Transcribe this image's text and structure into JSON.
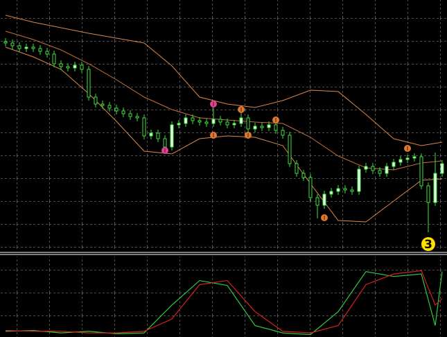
{
  "chart_data": [
    {
      "type": "candlestick",
      "xlim": [
        -0.8,
        63.7
      ],
      "ylim": [
        38,
        400
      ],
      "wick_color": "#3ee03e",
      "up_color": "#e8ffe8",
      "down_color": "#000000",
      "x": [
        0,
        1,
        2,
        3,
        4,
        5,
        6,
        7,
        8,
        9,
        10,
        11,
        12,
        13,
        14,
        15,
        16,
        17,
        18,
        19,
        20,
        21,
        22,
        23,
        24,
        25,
        26,
        27,
        28,
        29,
        30,
        31,
        32,
        33,
        34,
        35,
        36,
        37,
        38,
        39,
        40,
        41,
        42,
        43,
        44,
        45,
        46,
        47,
        48,
        49,
        50,
        51,
        52,
        53,
        54,
        55,
        56,
        57,
        58,
        59,
        60,
        61,
        62,
        63
      ],
      "open": [
        340,
        338,
        334,
        330,
        332,
        330,
        326,
        322,
        308,
        304,
        302,
        306,
        300,
        260,
        250,
        248,
        244,
        240,
        236,
        232,
        230,
        204,
        208,
        200,
        188,
        220,
        222,
        230,
        226,
        224,
        222,
        228,
        224,
        220,
        222,
        230,
        214,
        218,
        216,
        220,
        212,
        205,
        164,
        150,
        144,
        115,
        104,
        120,
        124,
        128,
        126,
        124,
        156,
        160,
        154,
        150,
        160,
        166,
        170,
        172,
        174,
        132,
        108,
        150
      ],
      "high": [
        345,
        343,
        339,
        337,
        337,
        335,
        331,
        327,
        313,
        309,
        311,
        311,
        305,
        265,
        255,
        253,
        249,
        245,
        241,
        237,
        235,
        213,
        213,
        205,
        225,
        227,
        235,
        235,
        231,
        229,
        250,
        233,
        229,
        227,
        240,
        235,
        223,
        223,
        225,
        225,
        217,
        210,
        169,
        155,
        149,
        120,
        125,
        129,
        133,
        133,
        131,
        161,
        165,
        165,
        159,
        165,
        171,
        175,
        177,
        179,
        179,
        137,
        180,
        169
      ],
      "low": [
        333,
        329,
        325,
        325,
        325,
        321,
        317,
        303,
        299,
        297,
        297,
        295,
        255,
        245,
        243,
        239,
        235,
        231,
        227,
        225,
        199,
        199,
        195,
        182,
        183,
        215,
        217,
        221,
        219,
        217,
        217,
        219,
        215,
        215,
        217,
        209,
        209,
        211,
        211,
        207,
        200,
        159,
        145,
        139,
        110,
        85,
        99,
        115,
        119,
        121,
        119,
        119,
        151,
        149,
        145,
        145,
        155,
        161,
        165,
        167,
        127,
        65,
        103,
        145
      ],
      "close": [
        338,
        334,
        330,
        332,
        330,
        326,
        322,
        308,
        304,
        302,
        306,
        300,
        260,
        250,
        248,
        244,
        240,
        236,
        232,
        230,
        204,
        208,
        200,
        188,
        220,
        222,
        230,
        226,
        224,
        222,
        228,
        224,
        220,
        222,
        230,
        214,
        218,
        216,
        220,
        212,
        205,
        164,
        150,
        144,
        115,
        104,
        120,
        124,
        128,
        126,
        124,
        156,
        160,
        154,
        150,
        160,
        166,
        170,
        172,
        174,
        132,
        108,
        150,
        164
      ],
      "bands": [
        {
          "color": "#d98a4e",
          "x": [
            0,
            4,
            8,
            12,
            16,
            20,
            24,
            28,
            32,
            36,
            40,
            44,
            48,
            52,
            56,
            60,
            63
          ],
          "values": [
            378,
            368,
            360,
            352,
            345,
            338,
            305,
            260,
            250,
            245,
            255,
            270,
            268,
            235,
            200,
            190,
            195
          ]
        },
        {
          "color": "#c8703a",
          "x": [
            0,
            4,
            8,
            12,
            16,
            20,
            24,
            28,
            32,
            36,
            40,
            44,
            48,
            52,
            56,
            60,
            63
          ],
          "values": [
            355,
            343,
            328,
            308,
            285,
            260,
            242,
            230,
            227,
            224,
            222,
            202,
            175,
            158,
            155,
            165,
            168
          ]
        },
        {
          "color": "#d98a4e",
          "x": [
            0,
            4,
            8,
            12,
            16,
            20,
            24,
            28,
            32,
            36,
            40,
            44,
            48,
            52,
            56,
            60,
            63
          ],
          "values": [
            332,
            318,
            300,
            265,
            225,
            182,
            178,
            200,
            204,
            202,
            190,
            135,
            82,
            80,
            110,
            140,
            142
          ]
        }
      ],
      "markers": [
        {
          "color": "#e0409a",
          "x": [
            30,
            23
          ],
          "values": [
            250,
            183
          ]
        },
        {
          "color": "#e07830",
          "x": [
            34,
            30,
            35,
            39,
            46,
            58
          ],
          "values": [
            242,
            205,
            205,
            227,
            86,
            186
          ]
        },
        {
          "color": "#ffe000",
          "x": [
            61
          ],
          "values": [
            48
          ],
          "labels": [
            "3"
          ]
        }
      ]
    },
    {
      "type": "line",
      "xlim": [
        -0.8,
        63.7
      ],
      "ylim": [
        0,
        100
      ],
      "series": [
        {
          "color": "#2ecc40",
          "x": [
            0,
            4,
            8,
            12,
            16,
            20,
            24,
            28,
            32,
            36,
            40,
            44,
            48,
            52,
            56,
            60,
            62,
            63
          ],
          "values": [
            7,
            8,
            5,
            7,
            4,
            5,
            39,
            69,
            63,
            14,
            5,
            3,
            31,
            80,
            74,
            77,
            14,
            80
          ]
        },
        {
          "color": "#d62020",
          "x": [
            0,
            4,
            8,
            12,
            16,
            20,
            24,
            28,
            32,
            36,
            40,
            44,
            48,
            52,
            56,
            60,
            62,
            63
          ],
          "values": [
            8,
            7,
            7,
            5,
            5,
            7,
            22,
            64,
            69,
            31,
            7,
            5,
            14,
            64,
            77,
            81,
            39,
            47
          ]
        }
      ]
    }
  ]
}
